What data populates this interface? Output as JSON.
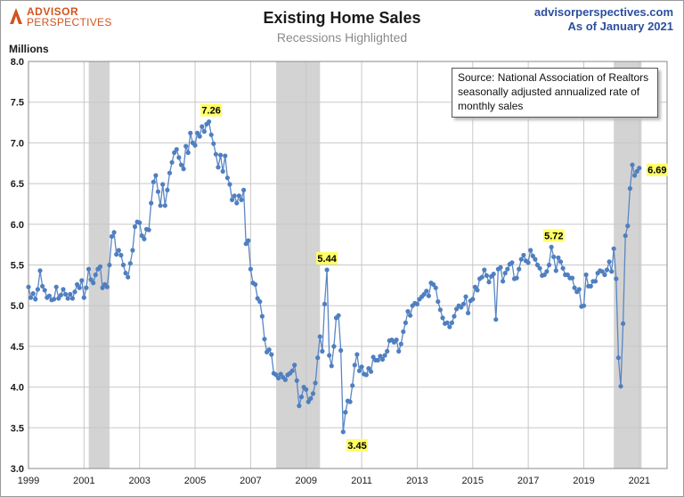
{
  "header": {
    "logo_line1": "ADVISOR",
    "logo_line2": "PERSPECTIVES",
    "title": "Existing Home Sales",
    "subtitle": "Recessions Highlighted",
    "site": "advisorperspectives.com",
    "as_of": "As of January 2021"
  },
  "source_box": {
    "lines": [
      "Source: National Association of Realtors",
      "seasonally adjusted annualized rate of",
      "monthly  sales"
    ]
  },
  "colors": {
    "line": "#5b86c4",
    "marker": "#4f7fc0",
    "recession": "#d3d3d3",
    "grid": "#c8c8c8",
    "label_bg": "#ffff66",
    "brand": "#d2541f",
    "site": "#2b4f9e"
  },
  "chart_data": {
    "type": "line",
    "ylabel": "Millions",
    "ylim": [
      3.0,
      8.0
    ],
    "xlim": [
      1999,
      2022
    ],
    "yticks": [
      "3.0",
      "3.5",
      "4.0",
      "4.5",
      "5.0",
      "5.5",
      "6.0",
      "6.5",
      "7.0",
      "7.5",
      "8.0"
    ],
    "xticks": [
      "1999",
      "2001",
      "2003",
      "2005",
      "2007",
      "2009",
      "2011",
      "2013",
      "2015",
      "2017",
      "2019",
      "2021"
    ],
    "recessions": [
      [
        2001.17,
        2001.92
      ],
      [
        2007.92,
        2009.5
      ],
      [
        2020.08,
        2021.08
      ]
    ],
    "series": [
      {
        "start": "1999-01",
        "values": [
          5.23,
          5.1,
          5.15,
          5.08,
          5.2,
          5.43,
          5.24,
          5.19,
          5.1,
          5.12,
          5.07,
          5.08,
          5.23,
          5.09,
          5.13,
          5.2,
          5.14,
          5.09,
          5.14,
          5.09,
          5.17,
          5.26,
          5.22,
          5.31,
          5.1,
          5.22,
          5.45,
          5.32,
          5.28,
          5.38,
          5.45,
          5.48,
          5.22,
          5.26,
          5.23,
          5.5,
          5.85,
          5.9,
          5.63,
          5.68,
          5.62,
          5.5,
          5.4,
          5.35,
          5.52,
          5.68,
          5.97,
          6.03,
          6.02,
          5.86,
          5.82,
          5.94,
          5.93,
          6.26,
          6.52,
          6.6,
          6.4,
          6.23,
          6.49,
          6.23,
          6.42,
          6.63,
          6.76,
          6.88,
          6.92,
          6.82,
          6.73,
          6.68,
          6.96,
          6.88,
          7.12,
          7.0,
          6.97,
          7.12,
          7.08,
          7.2,
          7.14,
          7.23,
          7.26,
          7.1,
          6.99,
          6.86,
          6.7,
          6.85,
          6.65,
          6.84,
          6.57,
          6.49,
          6.3,
          6.35,
          6.26,
          6.35,
          6.3,
          6.42,
          5.76,
          5.8,
          5.45,
          5.28,
          5.26,
          5.09,
          5.05,
          4.87,
          4.59,
          4.43,
          4.46,
          4.4,
          4.17,
          4.15,
          4.11,
          4.16,
          4.12,
          4.09,
          4.15,
          4.17,
          4.2,
          4.27,
          4.08,
          3.77,
          3.88,
          4.0,
          3.97,
          3.82,
          3.86,
          3.92,
          4.05,
          4.36,
          4.62,
          4.44,
          5.02,
          5.44,
          4.39,
          4.26,
          4.5,
          4.85,
          4.88,
          4.45,
          3.45,
          3.69,
          3.83,
          3.82,
          4.02,
          4.27,
          4.4,
          4.2,
          4.25,
          4.16,
          4.15,
          4.23,
          4.19,
          4.37,
          4.33,
          4.33,
          4.38,
          4.34,
          4.39,
          4.44,
          4.57,
          4.58,
          4.55,
          4.58,
          4.44,
          4.53,
          4.68,
          4.79,
          4.93,
          4.88,
          5.0,
          5.03,
          5.02,
          5.08,
          5.11,
          5.14,
          5.18,
          5.12,
          5.28,
          5.26,
          5.22,
          5.05,
          4.95,
          4.85,
          4.78,
          4.79,
          4.74,
          4.79,
          4.87,
          4.96,
          5.0,
          4.98,
          5.02,
          5.11,
          4.91,
          5.06,
          5.08,
          5.23,
          5.19,
          5.33,
          5.35,
          5.44,
          5.37,
          5.29,
          5.36,
          5.39,
          4.83,
          5.45,
          5.47,
          5.3,
          5.4,
          5.45,
          5.51,
          5.53,
          5.33,
          5.34,
          5.45,
          5.57,
          5.62,
          5.55,
          5.53,
          5.68,
          5.61,
          5.57,
          5.5,
          5.46,
          5.37,
          5.38,
          5.42,
          5.5,
          5.72,
          5.6,
          5.43,
          5.59,
          5.54,
          5.46,
          5.38,
          5.38,
          5.34,
          5.34,
          5.22,
          5.17,
          5.2,
          4.99,
          5.0,
          5.38,
          5.24,
          5.24,
          5.3,
          5.3,
          5.4,
          5.43,
          5.42,
          5.38,
          5.44,
          5.54,
          5.42,
          5.7,
          5.33,
          4.36,
          4.01,
          4.78,
          5.86,
          5.98,
          6.44,
          6.73,
          6.6,
          6.65,
          6.69
        ]
      }
    ],
    "annotations": [
      {
        "label": "7.26",
        "x": 2005.58,
        "y": 7.26
      },
      {
        "label": "5.44",
        "x": 2009.75,
        "y": 5.44
      },
      {
        "label": "3.45",
        "x": 2010.58,
        "y": 3.45
      },
      {
        "label": "5.72",
        "x": 2017.92,
        "y": 5.72
      },
      {
        "label": "6.69",
        "x": 2021.0,
        "y": 6.69
      }
    ],
    "grid": true
  }
}
